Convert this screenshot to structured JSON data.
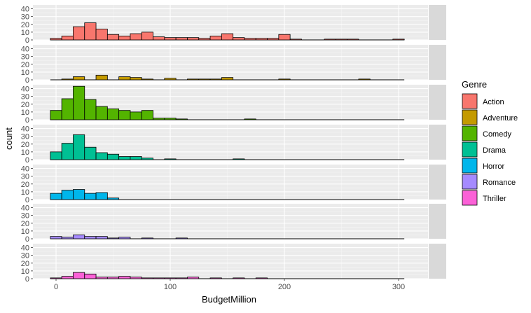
{
  "chart_data": {
    "type": "bar",
    "subtype": "faceted-histogram",
    "xlabel": "BudgetMillion",
    "ylabel": "count",
    "xlim": [
      -10,
      310
    ],
    "ylim": [
      0,
      45
    ],
    "x_ticks": [
      0,
      100,
      200,
      300
    ],
    "y_ticks": [
      0,
      10,
      20,
      30,
      40
    ],
    "bin_width": 10,
    "bin_start": -5,
    "grid": true,
    "legend": {
      "title": "Genre",
      "position": "right"
    },
    "colors": {
      "Action": "#F8766D",
      "Adventure": "#C49A00",
      "Comedy": "#53B400",
      "Drama": "#00C094",
      "Horror": "#00B6EB",
      "Romance": "#A58AFF",
      "Thriller": "#FB61D7",
      "panel_bg": "#EBEBEB",
      "strip_bg": "#D9D9D9"
    },
    "series": [
      {
        "name": "Action",
        "bin_counts": [
          2,
          5,
          17,
          22,
          14,
          7,
          5,
          8,
          10,
          4,
          3,
          3,
          3,
          2,
          5,
          8,
          3,
          2,
          2,
          2,
          7,
          1,
          0,
          0,
          1,
          1,
          1,
          0,
          0,
          0,
          1
        ]
      },
      {
        "name": "Adventure",
        "bin_counts": [
          0,
          1,
          4,
          0,
          6,
          0,
          4,
          3,
          1,
          0,
          2,
          0,
          1,
          1,
          1,
          3,
          0,
          0,
          0,
          0,
          1,
          0,
          0,
          0,
          0,
          0,
          0,
          1,
          0,
          0,
          0
        ]
      },
      {
        "name": "Comedy",
        "bin_counts": [
          12,
          27,
          43,
          26,
          17,
          14,
          12,
          10,
          12,
          2,
          2,
          1,
          0,
          0,
          0,
          0,
          0,
          1,
          0,
          0,
          0,
          0,
          0,
          0,
          0,
          0,
          0,
          0,
          0,
          0,
          0
        ]
      },
      {
        "name": "Drama",
        "bin_counts": [
          10,
          21,
          32,
          16,
          9,
          7,
          4,
          4,
          2,
          0,
          1,
          0,
          0,
          0,
          0,
          0,
          1,
          0,
          0,
          0,
          0,
          0,
          0,
          0,
          0,
          0,
          0,
          0,
          0,
          0,
          0
        ]
      },
      {
        "name": "Horror",
        "bin_counts": [
          8,
          12,
          13,
          8,
          9,
          2,
          0,
          0,
          0,
          0,
          0,
          0,
          0,
          0,
          0,
          0,
          0,
          0,
          0,
          0,
          0,
          0,
          0,
          0,
          0,
          0,
          0,
          0,
          0,
          0,
          0
        ]
      },
      {
        "name": "Romance",
        "bin_counts": [
          3,
          2,
          5,
          3,
          3,
          1,
          2,
          0,
          1,
          0,
          0,
          1,
          0,
          0,
          0,
          0,
          0,
          0,
          0,
          0,
          0,
          0,
          0,
          0,
          0,
          0,
          0,
          0,
          0,
          0,
          0
        ]
      },
      {
        "name": "Thriller",
        "bin_counts": [
          1,
          3,
          8,
          6,
          2,
          2,
          3,
          2,
          1,
          1,
          1,
          1,
          2,
          0,
          1,
          0,
          1,
          0,
          1,
          0,
          0,
          0,
          0,
          0,
          0,
          0,
          0,
          0,
          0,
          0,
          0
        ]
      }
    ]
  }
}
